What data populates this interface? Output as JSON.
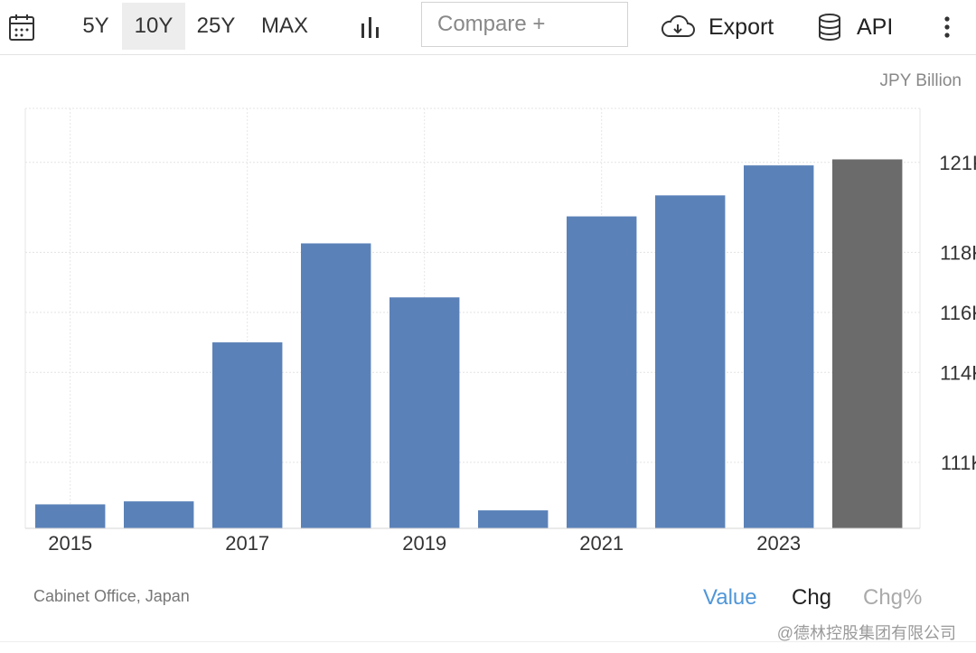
{
  "toolbar": {
    "ranges": [
      "5Y",
      "10Y",
      "25Y",
      "MAX"
    ],
    "active_range": "10Y",
    "compare_placeholder": "Compare +",
    "export_label": "Export",
    "api_label": "API"
  },
  "unit_label": "JPY Billion",
  "source": "Cabinet Office, Japan",
  "tabs": {
    "value": "Value",
    "chg": "Chg",
    "chgpct": "Chg%"
  },
  "watermark": "@德林控股集团有限公司",
  "colors": {
    "bar": "#5b82b8",
    "forecast_bar": "#6b6b6b",
    "active_tab": "#4f96d8"
  },
  "chart_data": {
    "type": "bar",
    "unit": "JPY Billion",
    "categories": [
      "2015",
      "2016",
      "2017",
      "2018",
      "2019",
      "2020",
      "2021",
      "2022",
      "2023",
      "2024"
    ],
    "values": [
      109600,
      109700,
      115000,
      118300,
      116500,
      109400,
      119200,
      119900,
      120900,
      121100
    ],
    "x_tick_labels": [
      "2015",
      "2017",
      "2019",
      "2021",
      "2023"
    ],
    "y_ticks": [
      111000,
      114000,
      116000,
      118000,
      121000
    ],
    "y_tick_labels": [
      "111K",
      "114K",
      "116K",
      "118K",
      "121K"
    ],
    "ylim": [
      108800,
      122800
    ],
    "highlighted_index": 9,
    "grid": true,
    "y_axis_side": "right"
  }
}
